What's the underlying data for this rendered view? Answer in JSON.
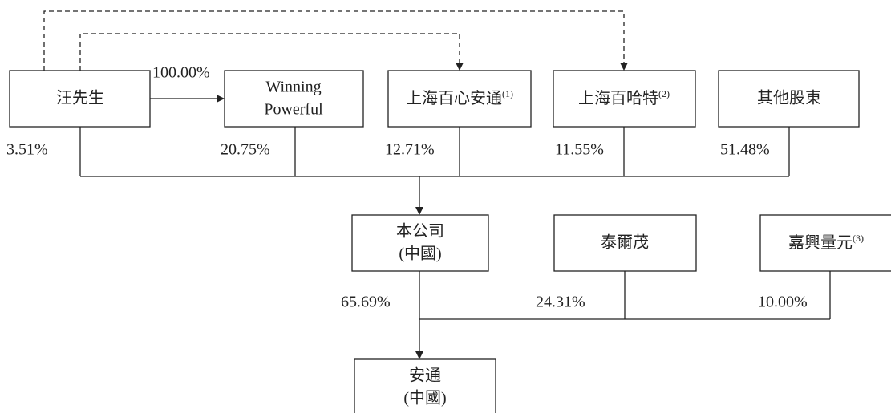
{
  "nodes": [
    {
      "lines": [
        "汪先生"
      ]
    },
    {
      "lines": [
        "Winning",
        "Powerful"
      ]
    },
    {
      "lines": [
        "上海百心安通"
      ],
      "note": "(1)"
    },
    {
      "lines": [
        "上海百哈特"
      ],
      "note": "(2)"
    },
    {
      "lines": [
        "其他股東"
      ]
    },
    {
      "lines": [
        "本公司",
        "(中國)"
      ]
    },
    {
      "lines": [
        "泰爾茂"
      ]
    },
    {
      "lines": [
        "嘉興量元"
      ],
      "note": "(3)"
    },
    {
      "lines": [
        "安通",
        "(中國)"
      ]
    }
  ],
  "percentages": [
    "100.00%",
    "3.51%",
    "20.75%",
    "12.71%",
    "11.55%",
    "51.48%",
    "65.69%",
    "24.31%",
    "10.00%"
  ]
}
